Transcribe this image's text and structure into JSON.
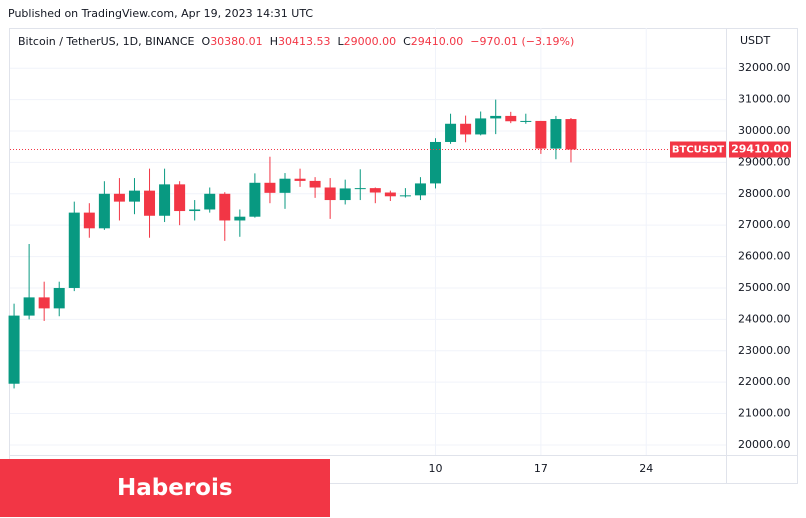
{
  "published": "Published on TradingView.com, Apr 19, 2023 14:31 UTC",
  "banner": "Haberois",
  "chart_data": {
    "type": "candlestick",
    "title": "Bitcoin / TetherUS, 1D, BINANCE",
    "legend_values": [
      {
        "label": "O",
        "value": "30380.01"
      },
      {
        "label": "H",
        "value": "30413.53"
      },
      {
        "label": "L",
        "value": "29000.00"
      },
      {
        "label": "C",
        "value": "29410.00"
      }
    ],
    "change": "−970.01 (−3.19%)",
    "y_axis_label": "USDT",
    "symbol": "BTCUSDT",
    "last_price_label": "29410.00",
    "up_color": "#089981",
    "down_color": "#f23645",
    "open": [
      21950,
      24120,
      24700,
      24350,
      25000,
      27400,
      26900,
      28000,
      27750,
      28100,
      27300,
      28300,
      27450,
      27500,
      28000,
      27150,
      27270,
      28350,
      28030,
      28480,
      28410,
      28200,
      27800,
      28170,
      28180,
      28040,
      27920,
      27950,
      28330,
      29650,
      30230,
      29890,
      30400,
      30480,
      30310,
      30320,
      29440,
      30380.01
    ],
    "high": [
      24500,
      26400,
      25200,
      25200,
      27750,
      27700,
      28400,
      28500,
      28500,
      28800,
      28800,
      28400,
      27800,
      28200,
      28050,
      27500,
      28650,
      29180,
      28660,
      28800,
      28530,
      28500,
      28450,
      28780,
      28200,
      28100,
      28180,
      28530,
      29770,
      30550,
      30490,
      30620,
      31000,
      30610,
      30550,
      30320,
      30480,
      30413.53
    ],
    "low": [
      21800,
      24000,
      23950,
      24100,
      24900,
      26600,
      26850,
      27150,
      27350,
      26600,
      27100,
      27000,
      27150,
      27400,
      26500,
      26630,
      27240,
      27700,
      27520,
      28220,
      27870,
      27200,
      27660,
      27800,
      27700,
      27770,
      27880,
      27800,
      28170,
      29590,
      29640,
      29860,
      29900,
      30250,
      30230,
      29270,
      29100,
      29000
    ],
    "close": [
      24120,
      24700,
      24350,
      25000,
      27400,
      26900,
      28000,
      27750,
      28100,
      27300,
      28300,
      27450,
      27500,
      28000,
      27150,
      27270,
      28350,
      28030,
      28480,
      28410,
      28200,
      27800,
      28170,
      28180,
      28040,
      27920,
      27950,
      28330,
      29650,
      30230,
      29890,
      30400,
      30480,
      30310,
      30320,
      29440,
      30380,
      29410
    ],
    "xlim": [
      -0.27,
      47.3
    ],
    "xticks": [
      {
        "value": 28,
        "label": "10"
      },
      {
        "value": 35,
        "label": "17"
      },
      {
        "value": 42,
        "label": "24"
      }
    ],
    "ylim": [
      19680,
      33280
    ],
    "yticks": [
      {
        "value": 20000,
        "label": "20000.00"
      },
      {
        "value": 21000,
        "label": "21000.00"
      },
      {
        "value": 22000,
        "label": "22000.00"
      },
      {
        "value": 23000,
        "label": "23000.00"
      },
      {
        "value": 24000,
        "label": "24000.00"
      },
      {
        "value": 25000,
        "label": "25000.00"
      },
      {
        "value": 26000,
        "label": "26000.00"
      },
      {
        "value": 27000,
        "label": "27000.00"
      },
      {
        "value": 28000,
        "label": "28000.00"
      },
      {
        "value": 29000,
        "label": "29000.00"
      },
      {
        "value": 30000,
        "label": "30000.00"
      },
      {
        "value": 31000,
        "label": "31000.00"
      },
      {
        "value": 32000,
        "label": "32000.00"
      }
    ],
    "grid": true
  }
}
